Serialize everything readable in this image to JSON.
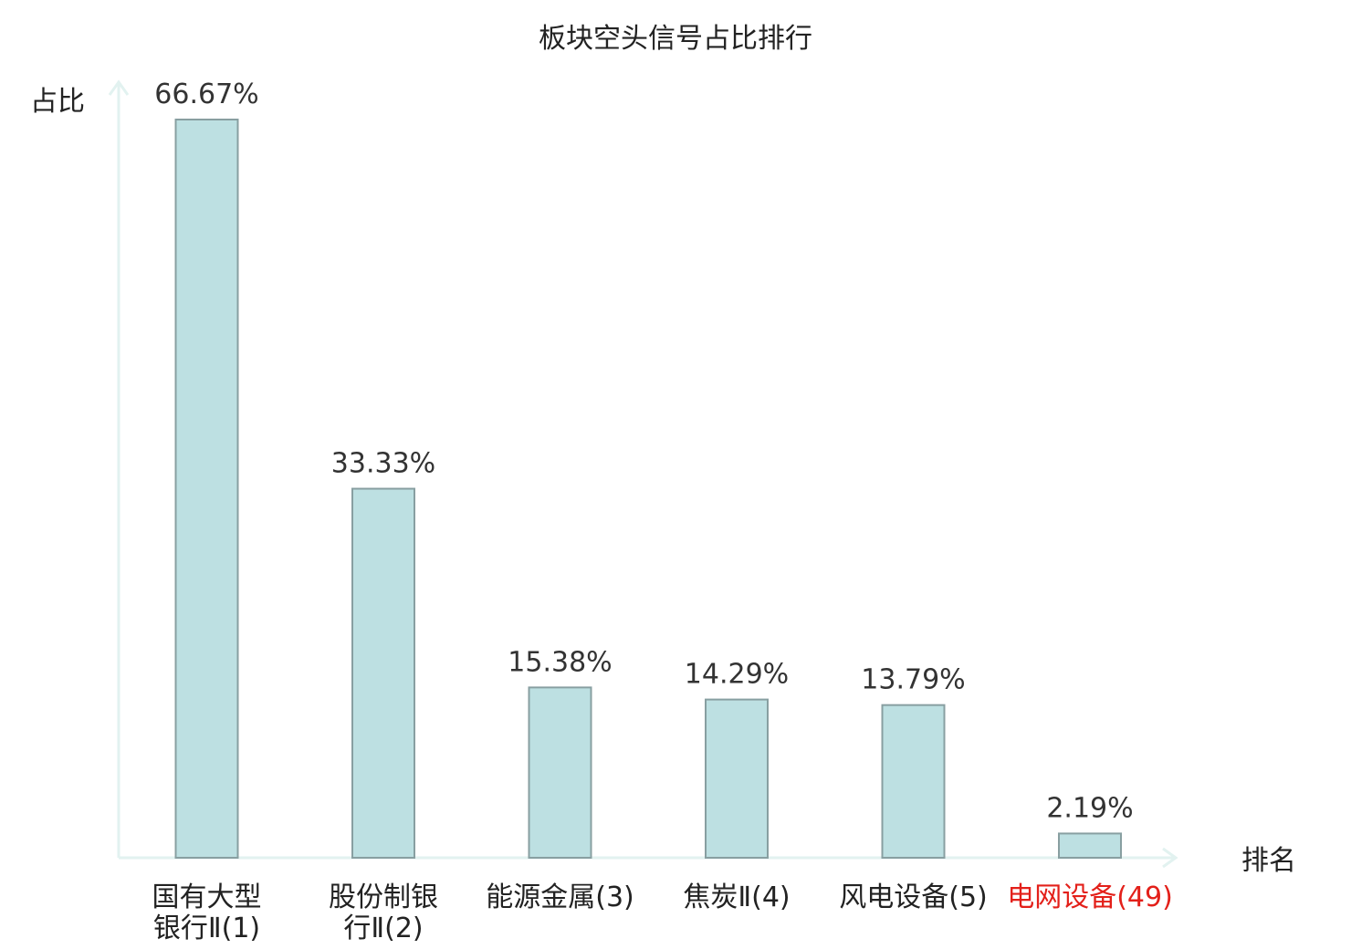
{
  "chart_data": {
    "type": "bar",
    "title": "板块空头信号占比排行",
    "ylabel": "占比",
    "xlabel": "排名",
    "categories": [
      [
        "国有大型",
        "银行Ⅱ(1)"
      ],
      [
        "股份制银",
        "行Ⅱ(2)"
      ],
      [
        "能源金属(3)"
      ],
      [
        "焦炭Ⅱ(4)"
      ],
      [
        "风电设备(5)"
      ],
      [
        "电网设备(49)"
      ]
    ],
    "values": [
      66.67,
      33.33,
      15.38,
      14.29,
      13.79,
      2.19
    ],
    "value_labels": [
      "66.67%",
      "33.33%",
      "15.38%",
      "14.29%",
      "13.79%",
      "2.19%"
    ],
    "highlight_index": 5,
    "ylim": [
      0,
      66.67
    ],
    "grid": false,
    "colors": {
      "bar_fill": "#bde0e2",
      "bar_stroke": "#889fa1",
      "axis": "#e2f2f0",
      "highlight_text": "#e3201a"
    }
  }
}
